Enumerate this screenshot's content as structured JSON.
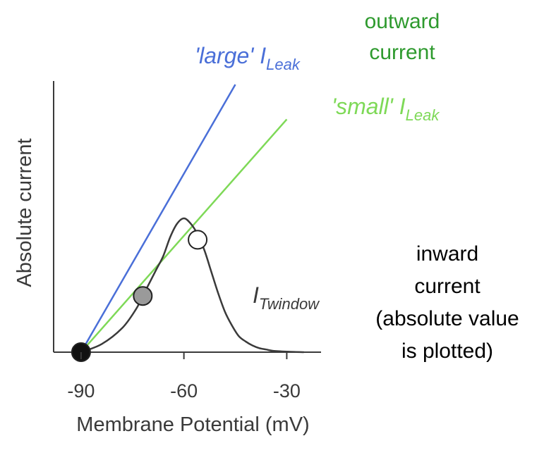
{
  "chart_data": {
    "type": "line",
    "xlabel": "Membrane Potential (mV)",
    "ylabel": "Absolute current",
    "x_ticks": [
      "-90",
      "-60",
      "-30"
    ],
    "xlim": [
      -98,
      -20
    ],
    "ylim": [
      0,
      100
    ],
    "grid": false,
    "series": [
      {
        "key": "large",
        "label_main": "'large' I",
        "label_sub": "Leak",
        "color": "#4a6fd8",
        "x": [
          -90,
          -45
        ],
        "y": [
          0,
          100
        ]
      },
      {
        "key": "small",
        "label_main": "'small' I",
        "label_sub": "Leak",
        "color": "#7ed957",
        "x": [
          -90,
          -30
        ],
        "y": [
          0,
          87
        ]
      },
      {
        "key": "twindow",
        "label_main": "I",
        "label_sub": "Twindow",
        "color": "#3a3a3a",
        "x": [
          -90,
          -84,
          -78,
          -74,
          -72,
          -70,
          -68,
          -66,
          -64,
          -62,
          -60,
          -58,
          -56,
          -54,
          -52,
          -50,
          -48,
          -46,
          -44,
          -42,
          -40,
          -38,
          -36,
          -34,
          -30,
          -25
        ],
        "y": [
          0,
          3,
          9,
          16,
          21,
          26,
          31,
          36,
          43,
          48,
          50,
          48,
          44,
          38,
          30,
          22,
          15,
          10,
          6,
          4,
          2.5,
          1.5,
          1,
          0.5,
          0.2,
          0
        ]
      }
    ],
    "points": [
      {
        "name": "rest-point",
        "x": -90,
        "y": 0,
        "fill": "#111111"
      },
      {
        "name": "gray-intersection-point",
        "x": -72,
        "y": 21,
        "fill": "#9a9a9a"
      },
      {
        "name": "white-intersection-point",
        "x": -56,
        "y": 42,
        "fill": "#ffffff"
      }
    ],
    "annotations": {
      "outward": [
        "outward",
        "current"
      ],
      "outward_color": "#2e9a2e",
      "inward": [
        "inward",
        "current",
        "(absolute value",
        "is plotted)"
      ],
      "inward_color": "#000000"
    }
  }
}
